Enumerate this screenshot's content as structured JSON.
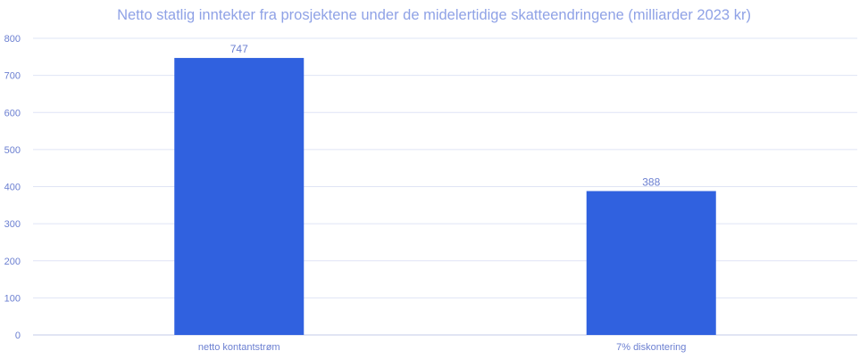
{
  "chart_data": {
    "type": "bar",
    "title": "Netto statlig inntekter fra prosjektene under de midelertidige skatteendringene (milliarder 2023 kr)",
    "categories": [
      "netto kontantstrøm",
      "7% diskontering"
    ],
    "values": [
      747,
      388
    ],
    "data_labels": [
      "747",
      "388"
    ],
    "ylim": [
      0,
      800
    ],
    "yticks": [
      0,
      100,
      200,
      300,
      400,
      500,
      600,
      700,
      800
    ],
    "xlabel": "",
    "ylabel": "",
    "grid": true,
    "legend": "none",
    "bar_color": "#3061df"
  }
}
